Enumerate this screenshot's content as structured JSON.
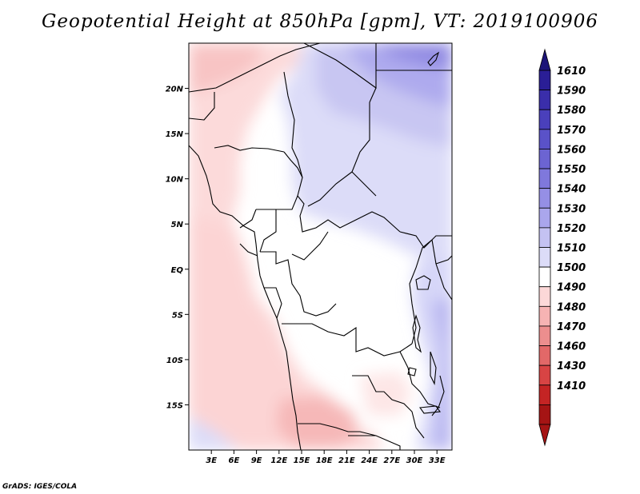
{
  "title": "Geopotential Height at 850hPa [gpm], VT: 2019100906",
  "credit": "GrADS: IGES/COLA",
  "map": {
    "lat_ticks": [
      "20N",
      "15N",
      "10N",
      "5N",
      "EQ",
      "5S",
      "10S",
      "15S"
    ],
    "lat_values": [
      20,
      15,
      10,
      5,
      0,
      -5,
      -10,
      -15
    ],
    "lon_ticks": [
      "3E",
      "6E",
      "9E",
      "12E",
      "15E",
      "18E",
      "21E",
      "24E",
      "27E",
      "30E",
      "33E"
    ],
    "lon_values": [
      3,
      6,
      9,
      12,
      15,
      18,
      21,
      24,
      27,
      30,
      33
    ],
    "lon_range": [
      0,
      35
    ],
    "lat_range": [
      -20,
      25
    ]
  },
  "colorbar": {
    "levels": [
      "1610",
      "1590",
      "1580",
      "1570",
      "1560",
      "1550",
      "1540",
      "1530",
      "1520",
      "1510",
      "1500",
      "1490",
      "1480",
      "1470",
      "1460",
      "1430",
      "1410"
    ],
    "colors": [
      "#2a1e96",
      "#3a2eaa",
      "#4a40bb",
      "#5a52c8",
      "#6c64d2",
      "#7f78dc",
      "#958fe5",
      "#aaa6ec",
      "#c4c2f2",
      "#dcdcf8",
      "#ffffff",
      "#fcd8d8",
      "#f6b3b3",
      "#ec8e8e",
      "#e26868",
      "#d84444",
      "#c42424",
      "#a51414"
    ]
  }
}
